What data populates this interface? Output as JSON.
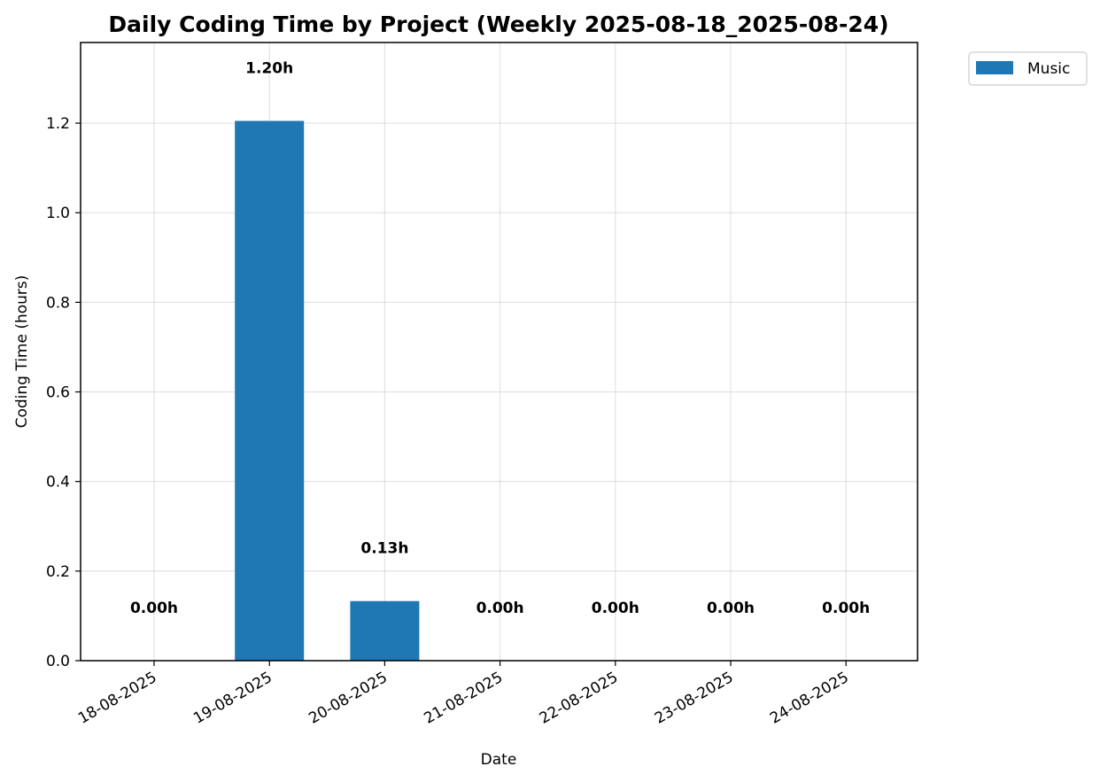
{
  "chart_data": {
    "type": "bar",
    "title": "Daily Coding Time by Project (Weekly 2025-08-18_2025-08-24)",
    "xlabel": "Date",
    "ylabel": "Coding Time (hours)",
    "categories": [
      "18-08-2025",
      "19-08-2025",
      "20-08-2025",
      "21-08-2025",
      "22-08-2025",
      "23-08-2025",
      "24-08-2025"
    ],
    "series": [
      {
        "name": "Music",
        "color": "#1f77b4",
        "values": [
          0.0,
          1.205,
          0.133,
          0.0,
          0.0,
          0.0,
          0.0
        ]
      }
    ],
    "data_labels": [
      "0.00h",
      "1.20h",
      "0.13h",
      "0.00h",
      "0.00h",
      "0.00h",
      "0.00h"
    ],
    "ylim": [
      0,
      1.38
    ],
    "yticks": [
      0.0,
      0.2,
      0.4,
      0.6,
      0.8,
      1.0,
      1.2
    ],
    "ytick_labels": [
      "0.0",
      "0.2",
      "0.4",
      "0.6",
      "0.8",
      "1.0",
      "1.2"
    ],
    "grid": true,
    "legend_position": "outside-top-right"
  }
}
